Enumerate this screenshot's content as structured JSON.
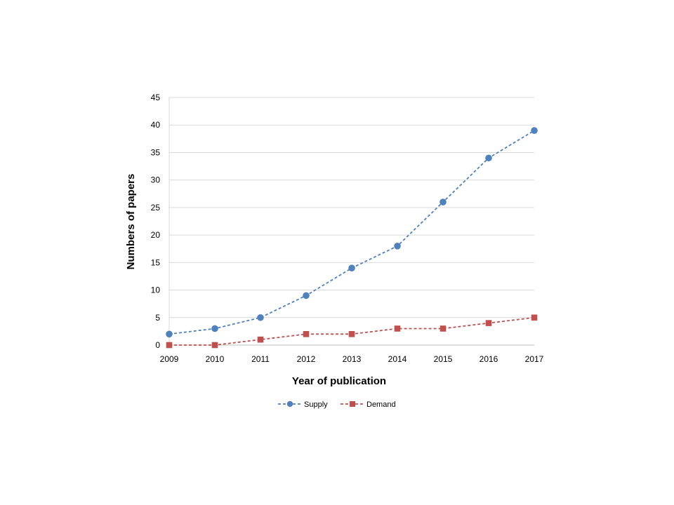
{
  "chart_data": {
    "type": "line",
    "title": "",
    "xlabel": "Year of publication",
    "ylabel": "Numbers of papers",
    "x": [
      "2009",
      "2010",
      "2011",
      "2012",
      "2013",
      "2014",
      "2015",
      "2016",
      "2017"
    ],
    "ylim": [
      0,
      45
    ],
    "yticks": [
      0,
      5,
      10,
      15,
      20,
      25,
      30,
      35,
      40,
      45
    ],
    "grid": true,
    "legend_position": "bottom",
    "series": [
      {
        "name": "Supply",
        "values": [
          2,
          3,
          5,
          9,
          14,
          18,
          26,
          34,
          39
        ],
        "color": "#4F81BD",
        "marker": "circle",
        "line_style": "dashed"
      },
      {
        "name": "Demand",
        "values": [
          0,
          0,
          1,
          2,
          2,
          3,
          3,
          4,
          5
        ],
        "color": "#C0504D",
        "marker": "square",
        "line_style": "dashed"
      }
    ]
  }
}
